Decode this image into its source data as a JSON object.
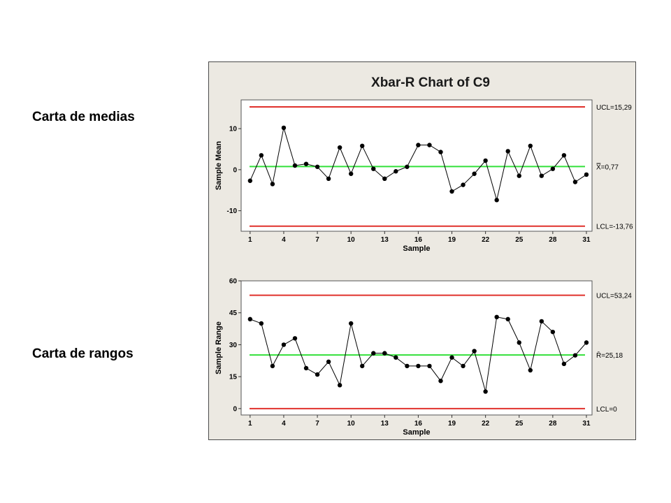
{
  "labels": {
    "mean_chart": "Carta de medias",
    "range_chart": "Carta de rangos"
  },
  "colors": {
    "background": "#ece9e2",
    "control_limit": "#e0312b",
    "center_line": "#33e03a",
    "data": "#000000"
  },
  "chart_data": [
    {
      "type": "line",
      "title": "Xbar-R Chart of C9",
      "xlabel": "Sample",
      "ylabel": "Sample Mean",
      "xlim": [
        0.2,
        31.5
      ],
      "ylim": [
        -15,
        17
      ],
      "xticks": [
        1,
        4,
        7,
        10,
        13,
        16,
        19,
        22,
        25,
        28,
        31
      ],
      "yticks": [
        -10,
        0,
        10
      ],
      "ucl": 15.29,
      "center": 0.77,
      "lcl": -13.76,
      "ucl_label": "UCL=15,29",
      "center_label": "X̿=0,77",
      "lcl_label": "LCL=-13,76",
      "x": [
        1,
        2,
        3,
        4,
        5,
        6,
        7,
        8,
        9,
        10,
        11,
        12,
        13,
        14,
        15,
        16,
        17,
        18,
        19,
        20,
        21,
        22,
        23,
        24,
        25,
        26,
        27,
        28,
        29,
        30,
        31
      ],
      "values": [
        -2.7,
        3.5,
        -3.5,
        10.2,
        1.0,
        1.4,
        0.7,
        -2.2,
        5.4,
        -1.0,
        5.8,
        0.2,
        -2.2,
        -0.4,
        0.7,
        6.0,
        6.0,
        4.3,
        -5.3,
        -3.7,
        -1.0,
        2.2,
        -7.4,
        4.5,
        -1.5,
        5.8,
        -1.5,
        0.2,
        3.5,
        -3.0,
        -1.2
      ]
    },
    {
      "type": "line",
      "title": "",
      "xlabel": "Sample",
      "ylabel": "Sample Range",
      "xlim": [
        0.2,
        31.5
      ],
      "ylim": [
        -3,
        60
      ],
      "xticks": [
        1,
        4,
        7,
        10,
        13,
        16,
        19,
        22,
        25,
        28,
        31
      ],
      "yticks": [
        0,
        15,
        30,
        45,
        60
      ],
      "ucl": 53.24,
      "center": 25.18,
      "lcl": 0,
      "ucl_label": "UCL=53,24",
      "center_label": "R̄=25,18",
      "lcl_label": "LCL=0",
      "x": [
        1,
        2,
        3,
        4,
        5,
        6,
        7,
        8,
        9,
        10,
        11,
        12,
        13,
        14,
        15,
        16,
        17,
        18,
        19,
        20,
        21,
        22,
        23,
        24,
        25,
        26,
        27,
        28,
        29,
        30,
        31
      ],
      "values": [
        42,
        40,
        20,
        30,
        33,
        19,
        16,
        22,
        11,
        40,
        20,
        26,
        26,
        24,
        20,
        20,
        20,
        13,
        24,
        20,
        27,
        8,
        43,
        42,
        31,
        18,
        41,
        36,
        21,
        25,
        31
      ]
    }
  ]
}
